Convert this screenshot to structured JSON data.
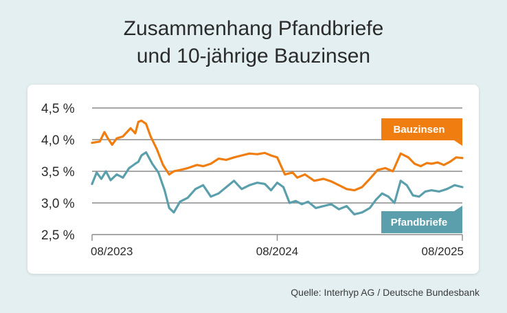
{
  "header": {
    "title_line1": "Zusammenhang Pfandbriefe",
    "title_line2": "und 10-jährige Bauzinsen"
  },
  "footer": {
    "source": "Quelle: Interhyp AG / Deutsche Bundesbank"
  },
  "colors": {
    "bauzinsen": "#f07d0f",
    "pfandbriefe": "#5a9fab",
    "grid": "#8a8a8a",
    "axis_text": "#2b2b2b",
    "label_text": "#ffffff"
  },
  "chart_data": {
    "type": "line",
    "title": "Zusammenhang Pfandbriefe und 10-jährige Bauzinsen",
    "xlabel": "",
    "ylabel": "",
    "ylim": [
      2.5,
      4.5
    ],
    "yticks": [
      {
        "value": 4.5,
        "label": "4,5 %"
      },
      {
        "value": 4.0,
        "label": "4,0 %"
      },
      {
        "value": 3.5,
        "label": "3,5 %"
      },
      {
        "value": 3.0,
        "label": "3,0 %"
      },
      {
        "value": 2.5,
        "label": "2,5 %"
      }
    ],
    "xlim": [
      0,
      24
    ],
    "xticks": [
      {
        "value": 0,
        "label": "08/2023"
      },
      {
        "value": 12,
        "label": "08/2024"
      },
      {
        "value": 24,
        "label": "08/2025"
      }
    ],
    "grid": true,
    "series": [
      {
        "name": "Bauzinsen",
        "label": "Bauzinsen",
        "x": [
          0,
          0.5,
          0.8,
          1.0,
          1.3,
          1.6,
          2.0,
          2.5,
          2.8,
          3.0,
          3.2,
          3.5,
          3.8,
          4.2,
          4.6,
          5.0,
          5.3,
          5.7,
          6.2,
          6.8,
          7.2,
          7.7,
          8.2,
          8.7,
          9.2,
          9.7,
          10.2,
          10.7,
          11.2,
          11.6,
          12.0,
          12.5,
          13.0,
          13.3,
          13.8,
          14.4,
          15.0,
          15.5,
          16.0,
          16.5,
          17.0,
          17.5,
          18.0,
          18.5,
          19.0,
          19.5,
          20.0,
          20.5,
          20.9,
          21.3,
          21.7,
          22.0,
          22.4,
          22.8,
          23.2,
          23.6,
          24.0
        ],
        "values": [
          3.95,
          3.97,
          4.12,
          4.03,
          3.92,
          4.02,
          4.05,
          4.18,
          4.1,
          4.28,
          4.3,
          4.25,
          4.05,
          3.85,
          3.6,
          3.45,
          3.5,
          3.52,
          3.55,
          3.6,
          3.58,
          3.62,
          3.7,
          3.68,
          3.72,
          3.75,
          3.78,
          3.77,
          3.79,
          3.75,
          3.72,
          3.45,
          3.48,
          3.4,
          3.45,
          3.35,
          3.38,
          3.34,
          3.28,
          3.22,
          3.2,
          3.25,
          3.38,
          3.52,
          3.55,
          3.5,
          3.78,
          3.72,
          3.62,
          3.58,
          3.63,
          3.62,
          3.64,
          3.6,
          3.65,
          3.72,
          3.71
        ]
      },
      {
        "name": "Pfandbriefe",
        "label": "Pfandbriefe",
        "x": [
          0,
          0.3,
          0.6,
          0.9,
          1.2,
          1.6,
          2.0,
          2.4,
          2.8,
          3.0,
          3.2,
          3.5,
          3.9,
          4.3,
          4.7,
          5.0,
          5.3,
          5.7,
          6.2,
          6.7,
          7.2,
          7.7,
          8.2,
          8.7,
          9.2,
          9.7,
          10.2,
          10.7,
          11.2,
          11.6,
          12.0,
          12.4,
          12.8,
          13.2,
          13.6,
          14.0,
          14.5,
          15.0,
          15.5,
          16.0,
          16.5,
          17.0,
          17.5,
          18.0,
          18.4,
          18.8,
          19.2,
          19.6,
          20.0,
          20.4,
          20.8,
          21.2,
          21.6,
          22.0,
          22.5,
          23.0,
          23.5,
          24.0
        ],
        "values": [
          3.3,
          3.48,
          3.38,
          3.5,
          3.36,
          3.45,
          3.4,
          3.55,
          3.62,
          3.65,
          3.75,
          3.8,
          3.62,
          3.48,
          3.2,
          2.92,
          2.85,
          3.02,
          3.08,
          3.22,
          3.28,
          3.1,
          3.15,
          3.25,
          3.35,
          3.22,
          3.28,
          3.32,
          3.3,
          3.2,
          3.32,
          3.25,
          3.0,
          3.03,
          2.98,
          3.02,
          2.92,
          2.95,
          2.98,
          2.9,
          2.95,
          2.82,
          2.85,
          2.92,
          3.05,
          3.15,
          3.1,
          3.0,
          3.35,
          3.28,
          3.12,
          3.1,
          3.18,
          3.2,
          3.18,
          3.22,
          3.28,
          3.25
        ]
      }
    ]
  }
}
